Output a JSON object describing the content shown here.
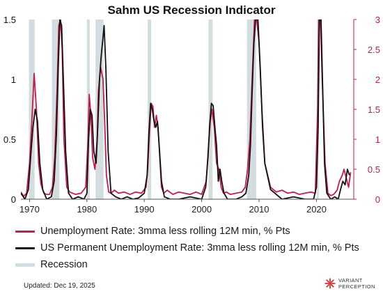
{
  "chart_data": {
    "type": "line",
    "title": "Sahm US Recession Indicator",
    "x_ticks": [
      "1970",
      "1980",
      "1990",
      "2000",
      "2010",
      "2020"
    ],
    "xlim": [
      1968.5,
      2026.5
    ],
    "y_left": {
      "ticks": [
        "0",
        "0.5",
        "1",
        "1.5"
      ],
      "lim": [
        0,
        1.5
      ],
      "color": "#111111"
    },
    "y_right": {
      "ticks": [
        "0",
        "0.5",
        "1",
        "1.5",
        "2",
        "2.5",
        "3"
      ],
      "lim": [
        0,
        3
      ],
      "color": "#c8194e"
    },
    "grid": false,
    "legend_position": "bottom",
    "series": [
      {
        "name": "Unemployment Rate: 3mma less rolling 12M min, % Pts",
        "axis": "right",
        "color": "#c8194e",
        "x": [
          1968.5,
          1969.0,
          1969.5,
          1970.0,
          1970.4,
          1970.8,
          1971.2,
          1971.6,
          1972.0,
          1972.5,
          1973.0,
          1973.5,
          1974.0,
          1974.4,
          1974.8,
          1975.1,
          1975.4,
          1975.7,
          1976.0,
          1976.5,
          1977.0,
          1978.0,
          1979.0,
          1979.8,
          1980.2,
          1980.4,
          1980.7,
          1981.0,
          1981.4,
          1981.8,
          1982.0,
          1982.4,
          1982.8,
          1983.1,
          1983.4,
          1983.8,
          1984.2,
          1984.8,
          1985.5,
          1986.5,
          1987.5,
          1988.5,
          1989.5,
          1990.3,
          1990.6,
          1990.9,
          1991.2,
          1991.5,
          1991.8,
          1992.1,
          1992.4,
          1992.7,
          1993.0,
          1993.4,
          1994.0,
          1995.0,
          1996.0,
          1997.0,
          1998.0,
          1999.0,
          2000.0,
          2000.8,
          2001.2,
          2001.5,
          2001.8,
          2002.2,
          2002.6,
          2003.0,
          2003.4,
          2003.8,
          2004.3,
          2005.0,
          2006.0,
          2007.0,
          2007.6,
          2008.0,
          2008.4,
          2008.8,
          2009.2,
          2009.6,
          2010.0,
          2010.5,
          2011.0,
          2012.0,
          2013.0,
          2014.0,
          2015.0,
          2016.0,
          2017.0,
          2018.0,
          2019.0,
          2019.8,
          2020.2,
          2020.4,
          2020.7,
          2021.0,
          2021.5,
          2022.0,
          2022.5,
          2023.0,
          2023.6,
          2024.0,
          2024.5,
          2024.8,
          2025.2,
          2025.6,
          2025.95
        ],
        "y": [
          0.12,
          0.05,
          0.1,
          0.6,
          1.3,
          2.1,
          1.5,
          0.6,
          0.25,
          0.1,
          0.08,
          0.08,
          0.2,
          0.7,
          1.8,
          2.9,
          3.0,
          2.5,
          1.0,
          0.2,
          0.12,
          0.08,
          0.1,
          0.2,
          1.0,
          1.75,
          1.4,
          0.7,
          0.5,
          1.0,
          1.8,
          2.2,
          2.0,
          1.3,
          0.4,
          0.12,
          0.1,
          0.15,
          0.1,
          0.12,
          0.08,
          0.12,
          0.1,
          0.2,
          0.5,
          1.1,
          1.6,
          1.55,
          1.2,
          1.4,
          1.2,
          0.7,
          0.2,
          0.1,
          0.15,
          0.08,
          0.12,
          0.1,
          0.08,
          0.12,
          0.08,
          0.3,
          0.9,
          1.3,
          1.5,
          1.2,
          0.6,
          0.5,
          0.2,
          0.1,
          0.12,
          0.08,
          0.1,
          0.12,
          0.2,
          0.5,
          1.0,
          2.0,
          3.0,
          3.0,
          2.6,
          1.5,
          0.6,
          0.2,
          0.12,
          0.15,
          0.1,
          0.12,
          0.08,
          0.1,
          0.12,
          0.1,
          1.5,
          3.0,
          3.0,
          2.0,
          0.6,
          0.1,
          0.06,
          0.08,
          0.15,
          0.3,
          0.4,
          0.5,
          0.35,
          0.2,
          0.45
        ]
      },
      {
        "name": "US Permanent Unemployment Rate: 3mma less rolling 12M min, % Pts",
        "axis": "left",
        "color": "#111111",
        "x": [
          1968.5,
          1969.2,
          1969.8,
          1970.2,
          1970.6,
          1971.0,
          1971.4,
          1971.8,
          1972.3,
          1973.0,
          1973.8,
          1974.3,
          1974.7,
          1975.0,
          1975.3,
          1975.6,
          1975.9,
          1976.3,
          1976.8,
          1977.5,
          1978.5,
          1979.5,
          1980.0,
          1980.3,
          1980.6,
          1980.9,
          1981.2,
          1981.6,
          1981.9,
          1982.2,
          1982.5,
          1982.8,
          1983.0,
          1983.3,
          1983.7,
          1984.2,
          1985.0,
          1986.0,
          1987.0,
          1988.0,
          1989.0,
          1990.0,
          1990.5,
          1990.8,
          1991.1,
          1991.4,
          1991.7,
          1992.0,
          1992.3,
          1992.6,
          1993.0,
          1993.5,
          1994.5,
          1996.0,
          1998.0,
          2000.0,
          2000.7,
          2001.1,
          2001.4,
          2001.7,
          2002.0,
          2002.3,
          2002.6,
          2002.9,
          2003.2,
          2003.5,
          2003.9,
          2004.5,
          2006.0,
          2007.0,
          2007.7,
          2008.2,
          2008.5,
          2008.8,
          2009.1,
          2009.4,
          2009.8,
          2010.2,
          2010.6,
          2011.0,
          2012.0,
          2014.0,
          2016.0,
          2018.0,
          2019.5,
          2020.0,
          2020.3,
          2020.5,
          2020.8,
          2021.1,
          2021.4,
          2021.8,
          2022.5,
          2023.2,
          2023.8,
          2024.2,
          2024.6,
          2025.0,
          2025.4,
          2025.75
        ],
        "y": [
          0.05,
          0.0,
          0.08,
          0.35,
          0.6,
          0.75,
          0.65,
          0.3,
          0.08,
          0.0,
          0.02,
          0.15,
          0.55,
          1.1,
          1.5,
          1.45,
          1.0,
          0.4,
          0.05,
          0.0,
          0.02,
          0.0,
          0.05,
          0.5,
          0.75,
          0.7,
          0.4,
          0.3,
          0.6,
          1.0,
          1.2,
          1.35,
          1.45,
          1.1,
          0.4,
          0.05,
          0.02,
          0.0,
          0.02,
          0.0,
          0.01,
          0.05,
          0.2,
          0.55,
          0.8,
          0.75,
          0.65,
          0.6,
          0.65,
          0.45,
          0.15,
          0.02,
          0.0,
          0.0,
          0.02,
          0.0,
          0.1,
          0.35,
          0.62,
          0.8,
          0.78,
          0.6,
          0.45,
          0.15,
          0.25,
          0.15,
          0.05,
          0.0,
          0.0,
          0.02,
          0.05,
          0.2,
          0.45,
          0.9,
          1.3,
          1.5,
          1.5,
          1.1,
          0.6,
          0.3,
          0.08,
          0.0,
          0.02,
          0.0,
          0.0,
          0.1,
          0.6,
          1.5,
          1.5,
          0.9,
          0.3,
          0.05,
          0.0,
          0.02,
          0.0,
          0.08,
          0.15,
          0.12,
          0.25,
          0.2
        ]
      },
      {
        "name": "Recession",
        "type": "band",
        "color": "#d3dde0",
        "ranges": [
          [
            1969.9,
            1970.9
          ],
          [
            1973.9,
            1975.2
          ],
          [
            1980.0,
            1980.5
          ],
          [
            1981.5,
            1982.9
          ],
          [
            1990.6,
            1991.2
          ],
          [
            2001.2,
            2001.9
          ],
          [
            2007.9,
            2009.5
          ],
          [
            2020.1,
            2020.4
          ]
        ]
      }
    ]
  },
  "footer": {
    "updated": "Updated: Dec 19, 2025",
    "brand_line1": "VARIANT",
    "brand_line2": "PERCEPTION",
    "brand_color": "#d4322f"
  }
}
